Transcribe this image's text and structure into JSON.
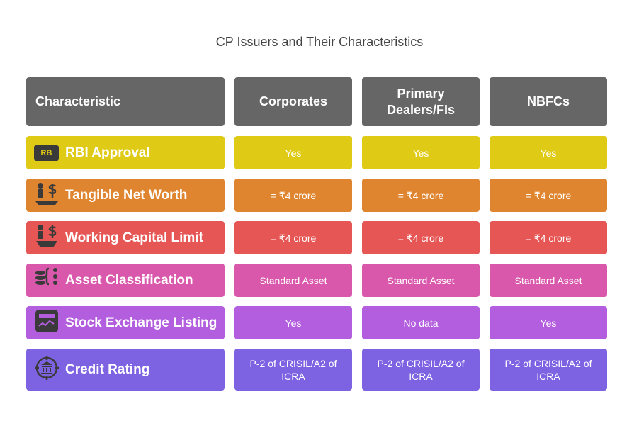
{
  "title": "CP Issuers and Their Characteristics",
  "table": {
    "header": [
      "Characteristic",
      "Corporates",
      "Primary Dealers/FIs",
      "NBFCs"
    ],
    "row_icon_text": "RB",
    "rows": [
      [
        "RBI Approval",
        "Yes",
        "Yes",
        "Yes"
      ],
      [
        "Tangible Net Worth",
        "= ₹4 crore",
        "= ₹4 crore",
        "= ₹4 crore"
      ],
      [
        "Working Capital Limit",
        "= ₹4 crore",
        "= ₹4 crore",
        "= ₹4 crore"
      ],
      [
        "Asset Classification",
        "Standard Asset",
        "Standard Asset",
        "Standard Asset"
      ],
      [
        "Stock Exchange Listing",
        "Yes",
        "No data",
        "Yes"
      ],
      [
        "Credit Rating",
        "P-2 of CRISIL/A2 of ICRA",
        "P-2 of CRISIL/A2 of ICRA",
        "P-2 of CRISIL/A2 of ICRA"
      ]
    ]
  }
}
